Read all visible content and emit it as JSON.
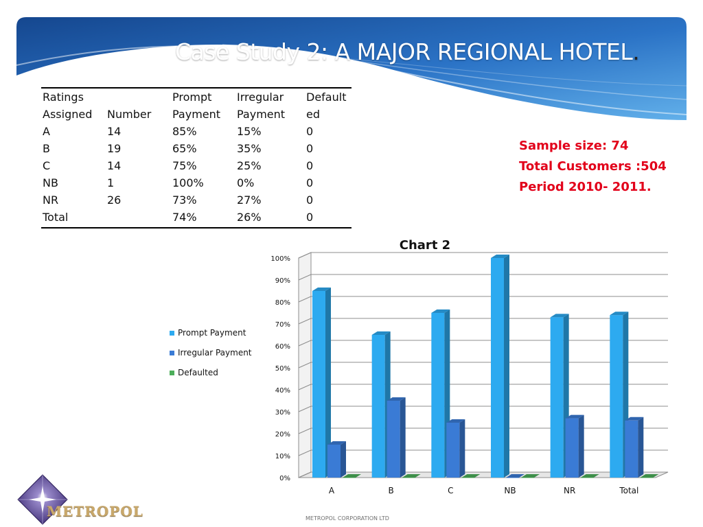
{
  "slide": {
    "title": "Case Study 2: A MAJOR REGIONAL HOTEL",
    "title_suffix": "."
  },
  "table": {
    "headers": [
      [
        "Ratings",
        "Assigned"
      ],
      [
        "",
        "Number"
      ],
      [
        "Prompt",
        "Payment"
      ],
      [
        "Irregular",
        "Payment"
      ],
      [
        "Default",
        "ed"
      ]
    ],
    "rows": [
      [
        "A",
        "14",
        "85%",
        "15%",
        "0"
      ],
      [
        "B",
        "19",
        "65%",
        "35%",
        "0"
      ],
      [
        "C",
        "14",
        "75%",
        "25%",
        "0"
      ],
      [
        "NB",
        "1",
        "100%",
        "0%",
        "0"
      ],
      [
        "NR",
        "26",
        "73%",
        "27%",
        "0"
      ],
      [
        "Total",
        "",
        "74%",
        "26%",
        "0"
      ]
    ]
  },
  "info": {
    "sample_size": "Sample size: 74",
    "total_customers": "Total Customers :504",
    "period": "Period 2010- 2011."
  },
  "chart_data": {
    "type": "bar",
    "title": "Chart 2",
    "categories": [
      "A",
      "B",
      "C",
      "NB",
      "NR",
      "Total"
    ],
    "series": [
      {
        "name": "Prompt Payment",
        "values": [
          85,
          65,
          75,
          100,
          73,
          74
        ],
        "color": "#2daaf0"
      },
      {
        "name": "Irregular Payment",
        "values": [
          15,
          35,
          25,
          0,
          27,
          26
        ],
        "color": "#3a7bd5"
      },
      {
        "name": "Defaulted",
        "values": [
          0,
          0,
          0,
          0,
          0,
          0
        ],
        "color": "#4cae5a"
      }
    ],
    "ylim": [
      0,
      100
    ],
    "yticks": [
      "0%",
      "10%",
      "20%",
      "30%",
      "40%",
      "50%",
      "60%",
      "70%",
      "80%",
      "90%",
      "100%"
    ],
    "grid": true,
    "three_d": true,
    "legend_position": "left"
  },
  "logo": {
    "text": "METROPOL"
  },
  "footer": {
    "text": "METROPOL CORPORATION LTD"
  },
  "colors": {
    "title_text": "#ffffff",
    "info_text": "#e2001a",
    "banner_dark": "#1b4f9c",
    "banner_light": "#6fb6ea"
  },
  "icons": {
    "logo_mark": "star-diamond-icon"
  }
}
